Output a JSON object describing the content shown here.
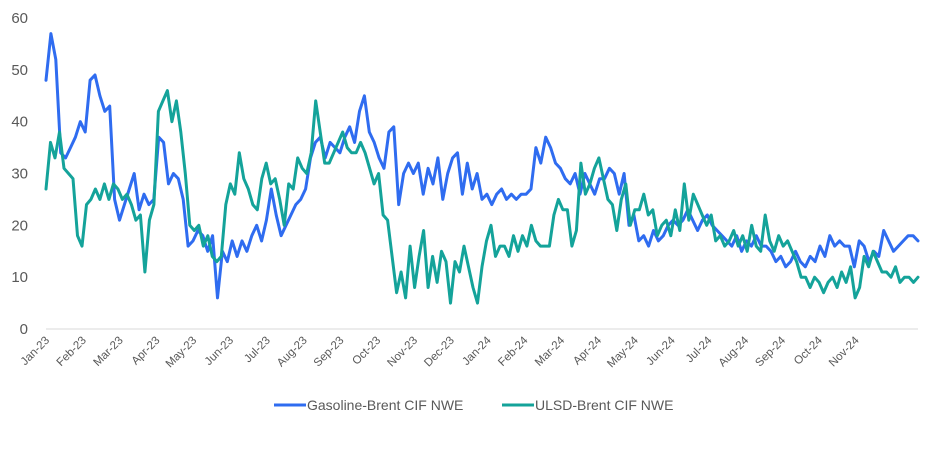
{
  "chart_data": {
    "type": "line",
    "title": "",
    "xlabel": "",
    "ylabel": "",
    "ylim": [
      0,
      60
    ],
    "yticks": [
      0,
      10,
      20,
      30,
      40,
      50,
      60
    ],
    "grid": false,
    "legend_position": "bottom",
    "x_tick_labels": [
      "Jan-23",
      "Feb-23",
      "Mar-23",
      "Apr-23",
      "May-23",
      "Jun-23",
      "Jul-23",
      "Aug-23",
      "Sep-23",
      "Oct-23",
      "Nov-23",
      "Dec-23",
      "Jan-24",
      "Feb-24",
      "Mar-24",
      "Apr-24",
      "May-24",
      "Jun-24",
      "Jul-24",
      "Aug-24",
      "Sep-24",
      "Oct-24",
      "Nov-24"
    ],
    "x_unit": "months since Jan-23 (weekly samples)",
    "x_step_months": 0.25,
    "series": [
      {
        "name": "Gasoline-Brent CIF NWE",
        "color": "#2F6CF0",
        "values": [
          48,
          57,
          52,
          34,
          33,
          35,
          37,
          40,
          38,
          48,
          49,
          45,
          42,
          43,
          25,
          21,
          24,
          27,
          30,
          23,
          26,
          24,
          25,
          37,
          36,
          28,
          30,
          29,
          25,
          16,
          17,
          19,
          18,
          15,
          18,
          6,
          15,
          13,
          17,
          14,
          17,
          15,
          18,
          20,
          17,
          21,
          27,
          22,
          18,
          20,
          22,
          24,
          25,
          27,
          33,
          36,
          37,
          33,
          36,
          35,
          34,
          37,
          39,
          36,
          42,
          45,
          38,
          36,
          33,
          31,
          38,
          39,
          24,
          30,
          32,
          30,
          32,
          26,
          31,
          28,
          33,
          25,
          30,
          33,
          34,
          26,
          32,
          27,
          30,
          25,
          26,
          24,
          26,
          27,
          25,
          26,
          25,
          26,
          26,
          27,
          35,
          32,
          37,
          35,
          32,
          31,
          29,
          28,
          30,
          26,
          30,
          28,
          26,
          29,
          29,
          31,
          30,
          26,
          30,
          20,
          22,
          17,
          18,
          16,
          19,
          17,
          18,
          20,
          21,
          20,
          21,
          23,
          21,
          19,
          21,
          22,
          20,
          19,
          18,
          17,
          16,
          18,
          15,
          17,
          16,
          18,
          16,
          16,
          15,
          13,
          14,
          12,
          13,
          15,
          13,
          12,
          14,
          13,
          16,
          14,
          18,
          16,
          17,
          16,
          16,
          12,
          17,
          16,
          13,
          15,
          14,
          19,
          17,
          15,
          16,
          17,
          18,
          18,
          17
        ]
      },
      {
        "name": "ULSD-Brent CIF NWE",
        "color": "#14A39A",
        "values": [
          27,
          36,
          33,
          38,
          31,
          30,
          29,
          18,
          16,
          24,
          25,
          27,
          25,
          28,
          25,
          28,
          27,
          25,
          26,
          24,
          21,
          22,
          11,
          21,
          24,
          42,
          44,
          46,
          40,
          44,
          38,
          30,
          20,
          19,
          20,
          16,
          18,
          14,
          13,
          14,
          24,
          28,
          26,
          34,
          29,
          27,
          24,
          23,
          29,
          32,
          28,
          29,
          25,
          20,
          28,
          27,
          33,
          31,
          30,
          34,
          44,
          38,
          32,
          32,
          34,
          36,
          38,
          35,
          34,
          34,
          36,
          34,
          31,
          28,
          30,
          22,
          21,
          14,
          7,
          11,
          6,
          16,
          8,
          14,
          19,
          8,
          14,
          9,
          15,
          13,
          5,
          13,
          11,
          16,
          12,
          8,
          5,
          12,
          17,
          20,
          14,
          16,
          16,
          14,
          18,
          15,
          18,
          16,
          20,
          17,
          16,
          16,
          16,
          22,
          25,
          23,
          23,
          16,
          19,
          32,
          26,
          28,
          31,
          33,
          29,
          25,
          24,
          19,
          25,
          28,
          20,
          23,
          23,
          26,
          22,
          23,
          18,
          20,
          21,
          18,
          23,
          19,
          28,
          21,
          26,
          24,
          22,
          20,
          22,
          17,
          18,
          16,
          17,
          19,
          16,
          18,
          15,
          20,
          16,
          15,
          22,
          17,
          15,
          18,
          16,
          17,
          15,
          13,
          10,
          10,
          8,
          10,
          9,
          7,
          9,
          10,
          8,
          11,
          9,
          12,
          6,
          8,
          14,
          12,
          15,
          13,
          11,
          11,
          10,
          12,
          9,
          10,
          10,
          9,
          10
        ]
      }
    ]
  }
}
